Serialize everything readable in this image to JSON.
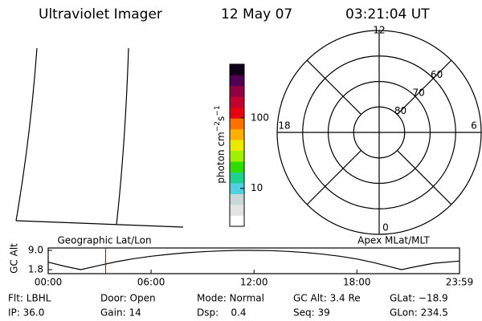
{
  "header": {
    "title": "Ultraviolet Imager",
    "date": "12 May 07",
    "time": "03:21:04 UT"
  },
  "colorbar": {
    "label": {
      "base": "photon cm",
      "exp1": "−2",
      "unit2": "s",
      "exp2": "−1"
    },
    "scale": "log",
    "clim": [
      2.9,
      575
    ],
    "ticks": [
      100,
      10
    ],
    "colors": [
      "#ffffff",
      "#e4e4e4",
      "#c8d8d8",
      "#50d0e0",
      "#20d090",
      "#30dc00",
      "#a0ee00",
      "#eaea00",
      "#ffb000",
      "#ff7000",
      "#e80010",
      "#c00030",
      "#900040",
      "#500050",
      "#100018"
    ]
  },
  "polar": {
    "rlim": [
      90,
      50
    ],
    "rticks": [
      80,
      70,
      60
    ],
    "hour_ticks": [
      0,
      6,
      12,
      18
    ]
  },
  "altitude_plot": {
    "type": "line",
    "ylabel": "GC Alt",
    "ylim": [
      1.8,
      9.0
    ],
    "yticks": [
      {
        "value": 9.0,
        "label": "9.0"
      },
      {
        "value": 1.8,
        "label": "1.8"
      }
    ],
    "xlim": [
      0,
      23.983
    ],
    "xticks": [
      {
        "value": 0,
        "label": "00:00"
      },
      {
        "value": 6,
        "label": "06:00"
      },
      {
        "value": 12,
        "label": "12:00"
      },
      {
        "value": 18,
        "label": "18:00"
      },
      {
        "value": 23.983,
        "label": "23:59"
      }
    ],
    "x": [
      0,
      1,
      1.9,
      3,
      4,
      5,
      6,
      7,
      8,
      9,
      10,
      11,
      11.7,
      13,
      14,
      15,
      16,
      17,
      18,
      19,
      20,
      20.6,
      21.5,
      22.5,
      23.983
    ],
    "values": [
      4.6,
      3.0,
      1.8,
      3.4,
      4.8,
      5.9,
      6.8,
      7.5,
      8.1,
      8.5,
      8.8,
      9.0,
      9.0,
      8.9,
      8.6,
      8.2,
      7.6,
      6.8,
      5.8,
      4.4,
      2.8,
      1.8,
      3.0,
      4.2,
      5.0
    ],
    "marker_time": 3.35,
    "marker_color": "#c00000",
    "left_label": "Geographic Lat/Lon",
    "right_label": "Apex MLat/MLT"
  },
  "info": [
    [
      "Flt: LBHL",
      "Door: Open",
      "Mode: Normal",
      "GC Alt: 3.4 Re",
      "GLat: −18.9"
    ],
    [
      "IP: 36.0",
      "Gain: 14",
      "Dsp:    0.4",
      "Seq: 39",
      "GLon: 234.5"
    ]
  ]
}
